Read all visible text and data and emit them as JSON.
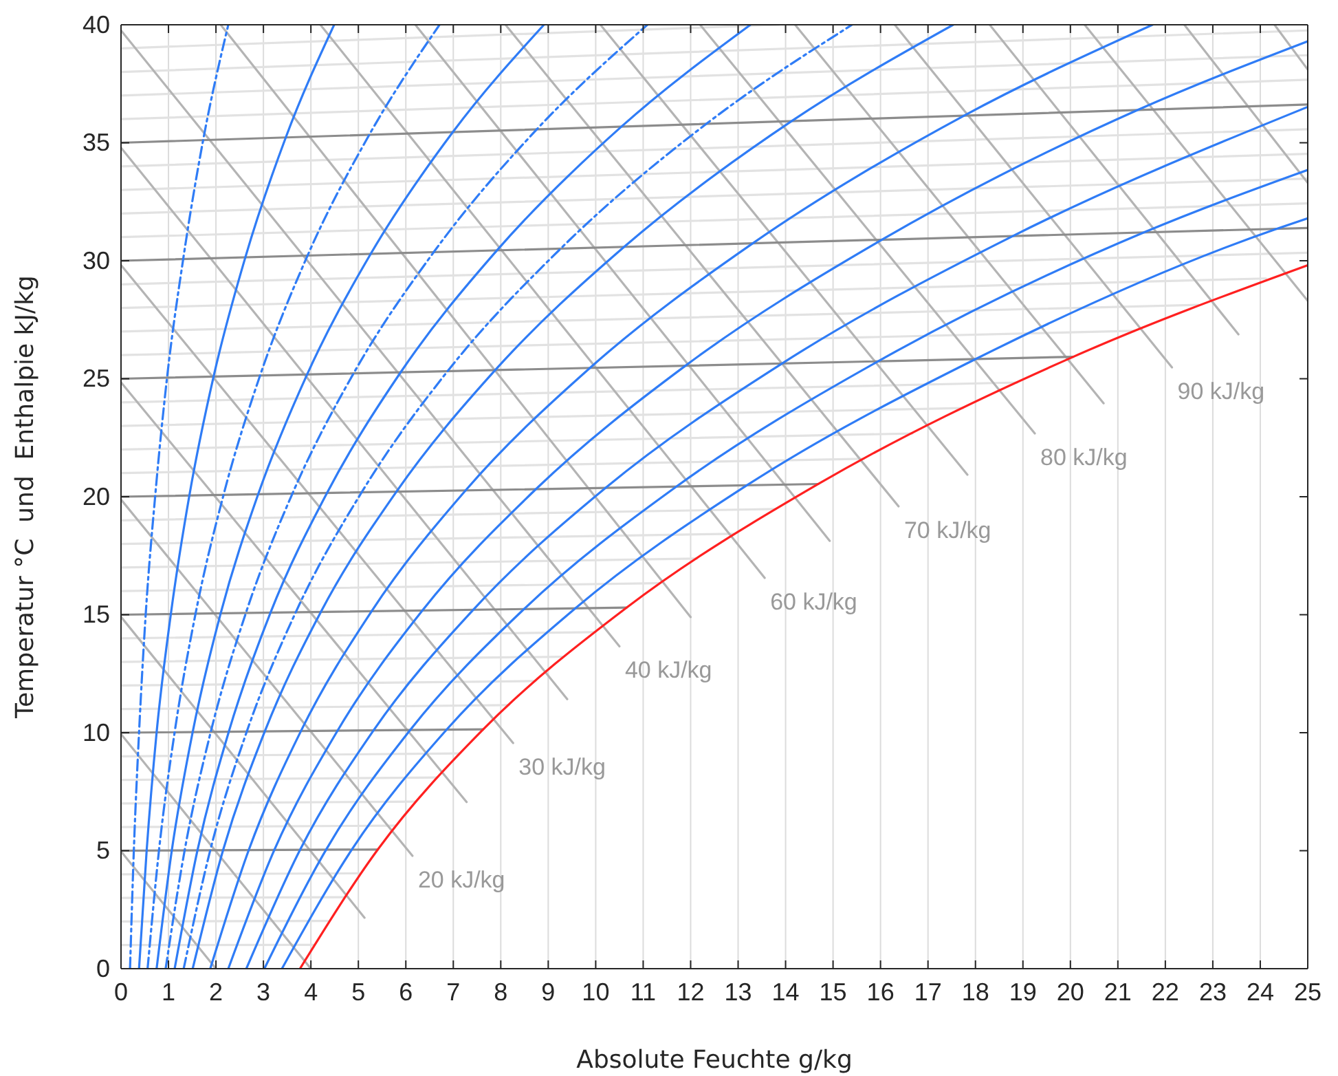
{
  "chart_data": {
    "type": "line",
    "xlabel": "Absolute Feuchte g/kg",
    "ylabel": "Temperatur °C  und  Enthalpie kJ/kg",
    "xlim": [
      0,
      25
    ],
    "ylim": [
      0,
      40
    ],
    "xticks": [
      0,
      1,
      2,
      3,
      4,
      5,
      6,
      7,
      8,
      9,
      10,
      11,
      12,
      13,
      14,
      15,
      16,
      17,
      18,
      19,
      20,
      21,
      22,
      23,
      24,
      25
    ],
    "yticks": [
      0,
      5,
      10,
      15,
      20,
      25,
      30,
      35,
      40
    ],
    "grid": "x",
    "marker": "none",
    "annotations": [
      {
        "text": "20 kJ/kg",
        "x": 6.14,
        "y": 4.78
      },
      {
        "text": "30 kJ/kg",
        "x": 8.26,
        "y": 9.56
      },
      {
        "text": "40 kJ/kg",
        "x": 10.5,
        "y": 13.66
      },
      {
        "text": "60 kJ/kg",
        "x": 13.56,
        "y": 16.56
      },
      {
        "text": "70 kJ/kg",
        "x": 16.38,
        "y": 19.59
      },
      {
        "text": "80 kJ/kg",
        "x": 19.25,
        "y": 22.68
      },
      {
        "text": "90 kJ/kg",
        "x": 22.14,
        "y": 25.48
      }
    ],
    "series": [
      {
        "color": "#e2e2e2",
        "x": [
          0,
          4.06
        ],
        "values": [
          1,
          1.01
        ]
      },
      {
        "color": "#e2e2e2",
        "x": [
          0,
          4.36
        ],
        "values": [
          2,
          2.02
        ]
      },
      {
        "color": "#e2e2e2",
        "x": [
          0,
          4.69
        ],
        "values": [
          3,
          3.03
        ]
      },
      {
        "color": "#e2e2e2",
        "x": [
          0,
          5.03
        ],
        "values": [
          4,
          4.04
        ]
      },
      {
        "color": "#e2e2e2",
        "x": [
          0,
          5.79
        ],
        "values": [
          6,
          6.06
        ]
      },
      {
        "color": "#e2e2e2",
        "x": [
          0,
          6.21
        ],
        "values": [
          7,
          7.08
        ]
      },
      {
        "color": "#e2e2e2",
        "x": [
          0,
          6.66
        ],
        "values": [
          8,
          8.1
        ]
      },
      {
        "color": "#e2e2e2",
        "x": [
          0,
          7.13
        ],
        "values": [
          9,
          9.12
        ]
      },
      {
        "color": "#e2e2e2",
        "x": [
          0,
          8.17
        ],
        "values": [
          11,
          11.17
        ]
      },
      {
        "color": "#e2e2e2",
        "x": [
          0,
          8.73
        ],
        "values": [
          12,
          12.19
        ]
      },
      {
        "color": "#e2e2e2",
        "x": [
          0,
          9.33
        ],
        "values": [
          13,
          13.22
        ]
      },
      {
        "color": "#e2e2e2",
        "x": [
          0,
          9.97
        ],
        "values": [
          14,
          14.26
        ]
      },
      {
        "color": "#e2e2e2",
        "x": [
          0,
          11.36
        ],
        "values": [
          16,
          16.34
        ]
      },
      {
        "color": "#e2e2e2",
        "x": [
          0,
          12.13
        ],
        "values": [
          17,
          17.38
        ]
      },
      {
        "color": "#e2e2e2",
        "x": [
          0,
          12.93
        ],
        "values": [
          18,
          18.43
        ]
      },
      {
        "color": "#e2e2e2",
        "x": [
          0,
          13.79
        ],
        "values": [
          19,
          19.48
        ]
      },
      {
        "color": "#e2e2e2",
        "x": [
          0,
          15.65
        ],
        "values": [
          21,
          21.61
        ]
      },
      {
        "color": "#e2e2e2",
        "x": [
          0,
          16.67
        ],
        "values": [
          22,
          22.68
        ]
      },
      {
        "color": "#e2e2e2",
        "x": [
          0,
          17.74
        ],
        "values": [
          23,
          23.76
        ]
      },
      {
        "color": "#e2e2e2",
        "x": [
          0,
          18.88
        ],
        "values": [
          24,
          24.84
        ]
      },
      {
        "color": "#e2e2e2",
        "x": [
          0,
          21.35
        ],
        "values": [
          26,
          27.03
        ]
      },
      {
        "color": "#e2e2e2",
        "x": [
          0,
          22.7
        ],
        "values": [
          27,
          28.13
        ]
      },
      {
        "color": "#e2e2e2",
        "x": [
          0,
          24.12
        ],
        "values": [
          28,
          29.25
        ]
      },
      {
        "color": "#e2e2e2",
        "x": [
          0,
          25
        ],
        "values": [
          29,
          30.34
        ]
      },
      {
        "color": "#e2e2e2",
        "x": [
          0,
          25
        ],
        "values": [
          31,
          32.43
        ]
      },
      {
        "color": "#e2e2e2",
        "x": [
          0,
          25
        ],
        "values": [
          32,
          33.48
        ]
      },
      {
        "color": "#e2e2e2",
        "x": [
          0,
          25
        ],
        "values": [
          33,
          34.53
        ]
      },
      {
        "color": "#e2e2e2",
        "x": [
          0,
          25
        ],
        "values": [
          34,
          35.57
        ]
      },
      {
        "color": "#e2e2e2",
        "x": [
          0,
          25
        ],
        "values": [
          36,
          37.67
        ]
      },
      {
        "color": "#e2e2e2",
        "x": [
          0,
          25
        ],
        "values": [
          37,
          38.71
        ]
      },
      {
        "color": "#e2e2e2",
        "x": [
          0,
          25
        ],
        "values": [
          38,
          39.76
        ]
      },
      {
        "color": "#e2e2e2",
        "x": [
          0,
          13.86
        ],
        "values": [
          39,
          40
        ]
      },
      {
        "color": "#b4b4b4",
        "x": [
          0,
          2.0
        ],
        "values": [
          4.97,
          0
        ]
      },
      {
        "color": "#b4b4b4",
        "x": [
          0,
          4.0
        ],
        "values": [
          9.94,
          0
        ]
      },
      {
        "color": "#b4b4b4",
        "x": [
          0,
          5.13
        ],
        "values": [
          14.91,
          2.16
        ]
      },
      {
        "color": "#b4b4b4",
        "x": [
          0,
          6.14
        ],
        "values": [
          19.88,
          4.78
        ]
      },
      {
        "color": "#b4b4b4",
        "x": [
          0,
          7.28
        ],
        "values": [
          24.85,
          7.06
        ]
      },
      {
        "color": "#b4b4b4",
        "x": [
          0,
          8.26
        ],
        "values": [
          29.82,
          9.56
        ]
      },
      {
        "color": "#b4b4b4",
        "x": [
          0,
          9.4
        ],
        "values": [
          34.79,
          11.42
        ]
      },
      {
        "color": "#b4b4b4",
        "x": [
          0,
          10.5
        ],
        "values": [
          39.76,
          13.66
        ]
      },
      {
        "color": "#b4b4b4",
        "x": [
          2.1,
          12.0
        ],
        "values": [
          40,
          14.9
        ]
      },
      {
        "color": "#b4b4b4",
        "x": [
          4.2,
          13.56
        ],
        "values": [
          40,
          16.56
        ]
      },
      {
        "color": "#b4b4b4",
        "x": [
          6.2,
          14.93
        ],
        "values": [
          40,
          18.13
        ]
      },
      {
        "color": "#b4b4b4",
        "x": [
          8.1,
          16.38
        ],
        "values": [
          40,
          19.59
        ]
      },
      {
        "color": "#b4b4b4",
        "x": [
          10.1,
          17.83
        ],
        "values": [
          40,
          20.93
        ]
      },
      {
        "color": "#b4b4b4",
        "x": [
          12.2,
          19.25
        ],
        "values": [
          40,
          22.68
        ]
      },
      {
        "color": "#b4b4b4",
        "x": [
          14.2,
          20.7
        ],
        "values": [
          40,
          23.96
        ]
      },
      {
        "color": "#b4b4b4",
        "x": [
          16.3,
          22.14
        ],
        "values": [
          40,
          25.48
        ]
      },
      {
        "color": "#b4b4b4",
        "x": [
          18.3,
          23.54
        ],
        "values": [
          40,
          26.88
        ]
      },
      {
        "color": "#b4b4b4",
        "x": [
          20.3,
          25
        ],
        "values": [
          40,
          28.3
        ]
      },
      {
        "color": "#b4b4b4",
        "x": [
          22.4,
          25
        ],
        "values": [
          40,
          33.3
        ]
      },
      {
        "color": "#b4b4b4",
        "x": [
          24.3,
          25
        ],
        "values": [
          40,
          38.1
        ]
      },
      {
        "color": "#8c8c8c",
        "x": [
          0,
          5.41
        ],
        "values": [
          5,
          5.05
        ]
      },
      {
        "color": "#8c8c8c",
        "x": [
          0,
          7.63
        ],
        "values": [
          10,
          10.14
        ]
      },
      {
        "color": "#8c8c8c",
        "x": [
          0,
          10.65
        ],
        "values": [
          15,
          15.3
        ]
      },
      {
        "color": "#8c8c8c",
        "x": [
          0,
          14.69
        ],
        "values": [
          20,
          20.54
        ]
      },
      {
        "color": "#8c8c8c",
        "x": [
          0,
          20.06
        ],
        "values": [
          25,
          25.93
        ]
      },
      {
        "color": "#8c8c8c",
        "x": [
          0,
          25
        ],
        "values": [
          30,
          31.39
        ]
      },
      {
        "color": "#8c8c8c",
        "x": [
          0,
          25
        ],
        "values": [
          35,
          36.62
        ]
      },
      {
        "color": "#2f7cf6",
        "line_style": "dashed",
        "x": [
          0.19,
          0.27,
          0.38,
          0.52,
          0.72,
          0.97,
          1.31,
          1.73,
          2.26
        ],
        "values": [
          0,
          5.0,
          10.01,
          15.01,
          20.03,
          25.05,
          30.07,
          35.11,
          40
        ]
      },
      {
        "color": "#2f7cf6",
        "x": [
          0.38,
          0.54,
          0.75,
          1.05,
          1.44,
          1.95,
          2.62,
          3.47,
          4.49
        ],
        "values": [
          0,
          5.0,
          10.01,
          15.03,
          20.05,
          25.09,
          30.15,
          35.22,
          40
        ]
      },
      {
        "color": "#2f7cf6",
        "line_style": "dashed",
        "x": [
          0.56,
          0.8,
          1.13,
          1.57,
          2.16,
          2.93,
          3.93,
          5.23,
          6.71
        ],
        "values": [
          0,
          5.01,
          10.02,
          15.04,
          20.08,
          25.14,
          30.22,
          35.34,
          40
        ]
      },
      {
        "color": "#2f7cf6",
        "x": [
          0.75,
          1.07,
          1.51,
          2.1,
          2.89,
          3.92,
          5.26,
          6.99,
          8.91
        ],
        "values": [
          0,
          5.01,
          10.03,
          15.06,
          20.11,
          25.18,
          30.29,
          35.45,
          40
        ]
      },
      {
        "color": "#2f7cf6",
        "line_style": "dashed",
        "x": [
          0.94,
          1.34,
          1.89,
          2.63,
          3.61,
          4.9,
          6.59,
          8.76,
          11.09
        ],
        "values": [
          0,
          5.01,
          10.03,
          15.07,
          20.13,
          25.23,
          30.37,
          35.57,
          40
        ]
      },
      {
        "color": "#2f7cf6",
        "x": [
          1.13,
          1.61,
          2.27,
          3.15,
          4.34,
          5.89,
          7.92,
          10.54,
          13.26
        ],
        "values": [
          0,
          5.01,
          10.04,
          15.09,
          20.16,
          25.27,
          30.44,
          35.68,
          40
        ]
      },
      {
        "color": "#2f7cf6",
        "line_style": "dashed",
        "x": [
          1.32,
          1.88,
          2.65,
          3.68,
          5.07,
          6.88,
          9.26,
          12.33,
          15.4
        ],
        "values": [
          0,
          5.02,
          10.05,
          15.1,
          20.19,
          25.32,
          30.51,
          35.8,
          40
        ]
      },
      {
        "color": "#2f7cf6",
        "x": [
          1.51,
          2.15,
          3.03,
          4.21,
          5.8,
          7.88,
          10.6,
          14.13,
          17.53
        ],
        "values": [
          0,
          5.02,
          10.06,
          15.12,
          20.21,
          25.36,
          30.59,
          35.92,
          40
        ]
      },
      {
        "color": "#2f7cf6",
        "x": [
          1.88,
          2.69,
          3.79,
          5.28,
          7.26,
          9.88,
          13.31,
          17.76,
          21.73
        ],
        "values": [
          0,
          5.02,
          10.07,
          15.15,
          20.27,
          25.46,
          30.74,
          36.15,
          40
        ]
      },
      {
        "color": "#2f7cf6",
        "x": [
          2.26,
          3.23,
          4.56,
          6.35,
          8.74,
          11.89,
          16.03,
          21.42,
          25
        ],
        "values": [
          0,
          5.03,
          10.08,
          15.18,
          20.32,
          25.55,
          30.89,
          36.39,
          39.3
        ]
      },
      {
        "color": "#2f7cf6",
        "x": [
          2.64,
          3.77,
          5.32,
          7.42,
          10.21,
          13.92,
          18.78,
          25
        ],
        "values": [
          0,
          5.03,
          10.1,
          15.21,
          20.38,
          25.64,
          31.04,
          36.52
        ]
      },
      {
        "color": "#2f7cf6",
        "x": [
          3.02,
          4.32,
          6.09,
          8.49,
          11.7,
          15.95,
          21.55,
          25
        ],
        "values": [
          0,
          5.04,
          10.11,
          15.24,
          20.43,
          25.74,
          31.2,
          33.85
        ]
      },
      {
        "color": "#2f7cf6",
        "x": [
          3.39,
          4.86,
          6.86,
          9.57,
          13.19,
          18.0,
          24.34,
          25
        ],
        "values": [
          0,
          5.04,
          10.13,
          15.27,
          20.49,
          25.83,
          31.35,
          31.8
        ]
      },
      {
        "color": "#ff2020",
        "x": [
          3.77,
          5.41,
          7.63,
          10.65,
          14.69,
          20.06,
          25
        ],
        "values": [
          0,
          5.05,
          10.14,
          15.3,
          20.54,
          25.93,
          29.81
        ]
      }
    ]
  }
}
